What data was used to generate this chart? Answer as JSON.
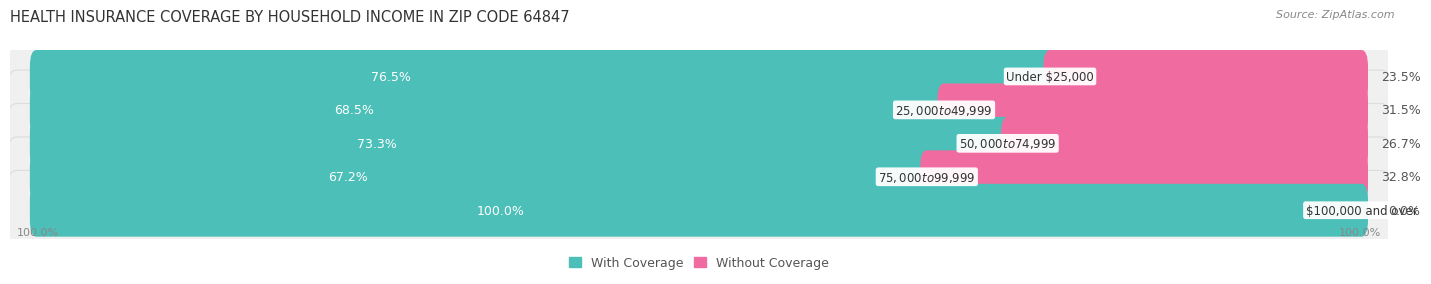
{
  "title": "HEALTH INSURANCE COVERAGE BY HOUSEHOLD INCOME IN ZIP CODE 64847",
  "source": "Source: ZipAtlas.com",
  "categories": [
    "Under $25,000",
    "$25,000 to $49,999",
    "$50,000 to $74,999",
    "$75,000 to $99,999",
    "$100,000 and over"
  ],
  "with_coverage": [
    76.5,
    68.5,
    73.3,
    67.2,
    100.0
  ],
  "without_coverage": [
    23.5,
    31.5,
    26.7,
    32.8,
    0.0
  ],
  "color_with": "#4BBFB8",
  "color_without": "#F06CA0",
  "color_without_last": "#F5A8C0",
  "background_color": "#FFFFFF",
  "row_bg_color": "#F0F0F0",
  "row_border_color": "#DDDDDD",
  "label_color_with": "#FFFFFF",
  "label_color_outside": "#555555",
  "axis_label": "100.0%",
  "title_fontsize": 10.5,
  "source_fontsize": 8,
  "bar_label_fontsize": 9,
  "category_fontsize": 8.5,
  "legend_fontsize": 9
}
